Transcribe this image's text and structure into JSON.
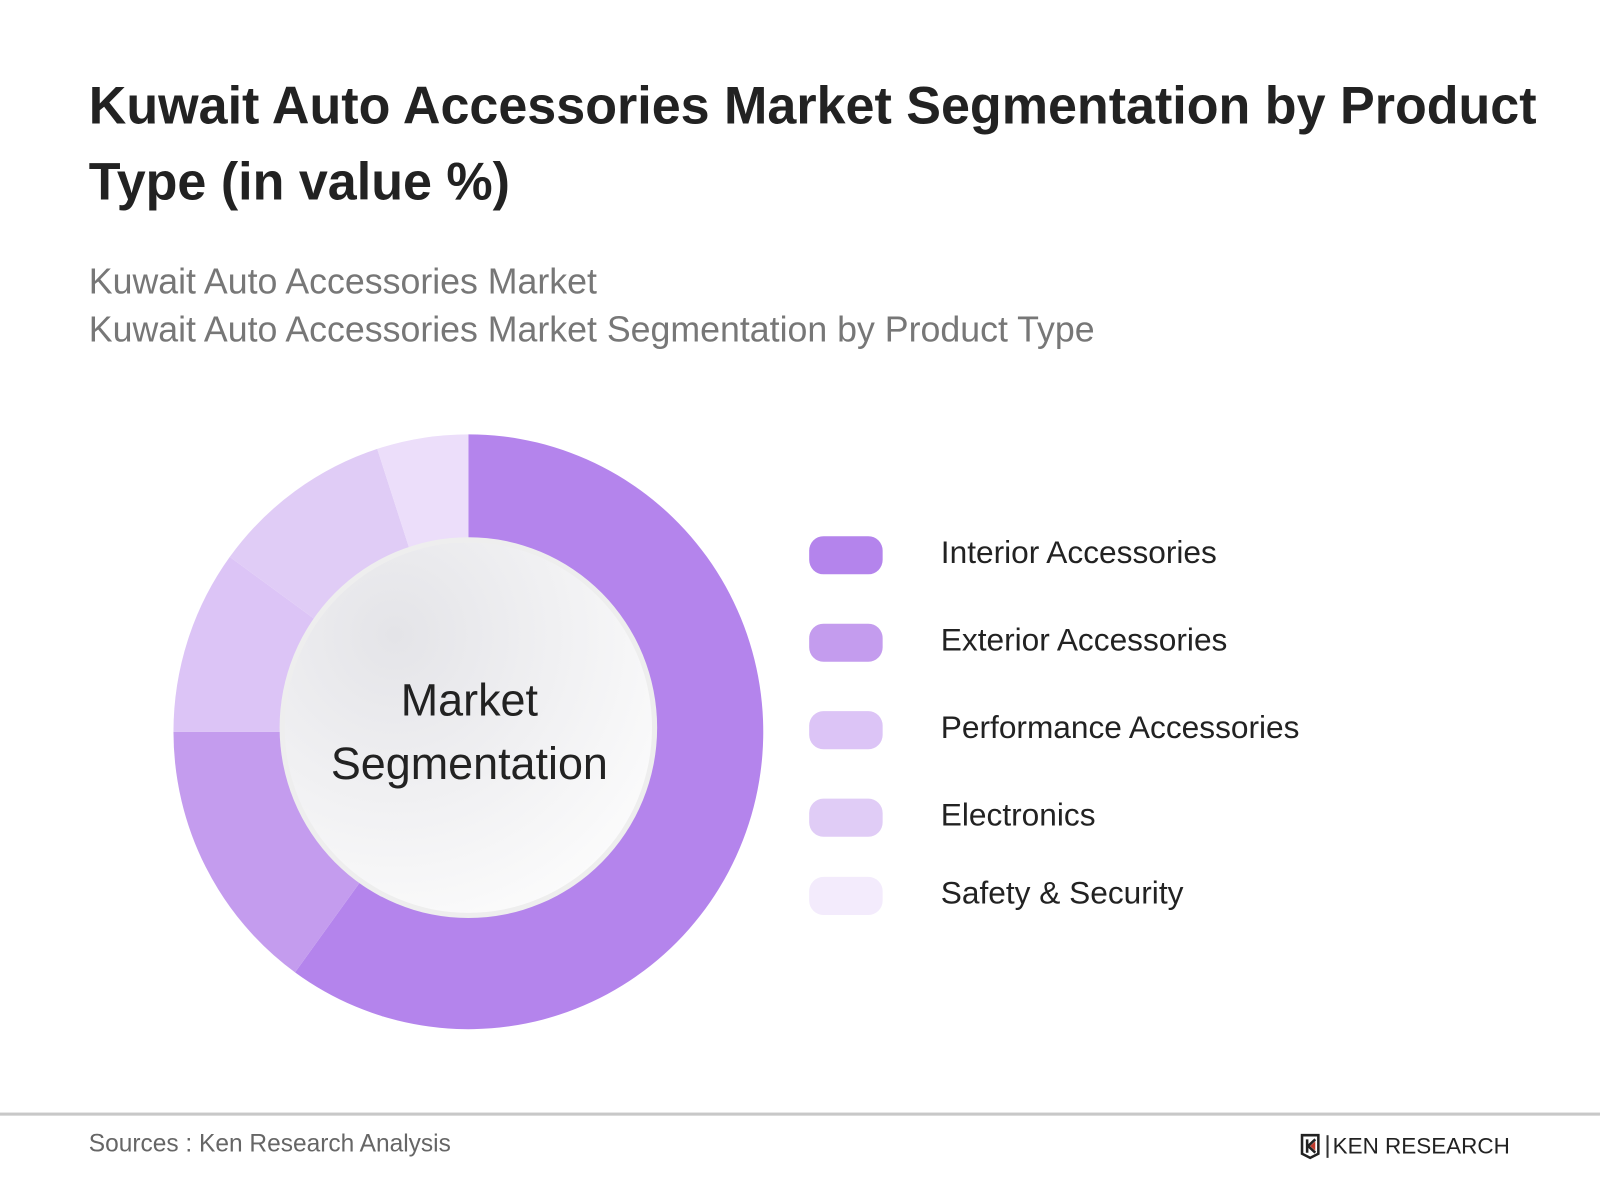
{
  "title": "Kuwait Auto Accessories Market Segmentation by Product Type (in value %)",
  "subtitle_line1": "Kuwait Auto Accessories Market",
  "subtitle_line2": "Kuwait Auto Accessories Market Segmentation by Product Type",
  "center_label_line1": "Market",
  "center_label_line2": "Segmentation",
  "source": "Sources : Ken Research Analysis",
  "logo_text": "KEN RESEARCH",
  "chart_data": {
    "type": "pie",
    "variant": "donut",
    "title": "Kuwait Auto Accessories Market Segmentation by Product Type (in value %)",
    "categories": [
      "Interior Accessories",
      "Exterior Accessories",
      "Performance Accessories",
      "Electronics",
      "Safety & Security"
    ],
    "values": [
      60,
      15,
      10,
      10,
      5
    ],
    "colors": [
      "#b484ec",
      "#c49cee",
      "#dcc4f6",
      "#e0ccf6",
      "#ecdefa"
    ],
    "legend_colors": [
      "#b484ec",
      "#c49cee",
      "#dcc4f6",
      "#e0ccf6",
      "#f3ebfc"
    ],
    "legend_placement": "right",
    "start_angle": "top, clockwise"
  }
}
